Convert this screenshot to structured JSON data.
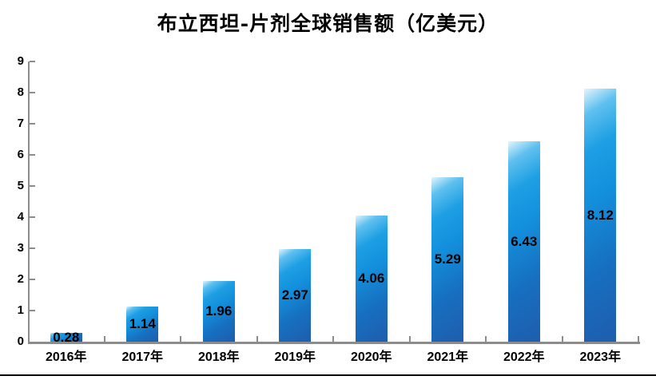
{
  "chart_data": {
    "type": "bar",
    "title": "布立西坦-片剂全球销售额（亿美元）",
    "categories": [
      "2016年",
      "2017年",
      "2018年",
      "2019年",
      "2020年",
      "2021年",
      "2022年",
      "2023年"
    ],
    "values": [
      0.28,
      1.14,
      1.96,
      2.97,
      4.06,
      5.29,
      6.43,
      8.12
    ],
    "data_labels": [
      "0.28",
      "1.14",
      "1.96",
      "2.97",
      "4.06",
      "5.29",
      "6.43",
      "8.12"
    ],
    "xlabel": "",
    "ylabel": "",
    "ylim": [
      0,
      9
    ],
    "y_ticks": [
      "0",
      "1",
      "2",
      "3",
      "4",
      "5",
      "6",
      "7",
      "8",
      "9"
    ],
    "grid": false,
    "legend": false,
    "colors": {
      "bar_gradient_top": "#e3f5fd",
      "bar_light": "#1e9fe4",
      "bar_dark": "#1f5dad",
      "axis": "#8c8c8c",
      "text": "#000000"
    }
  }
}
